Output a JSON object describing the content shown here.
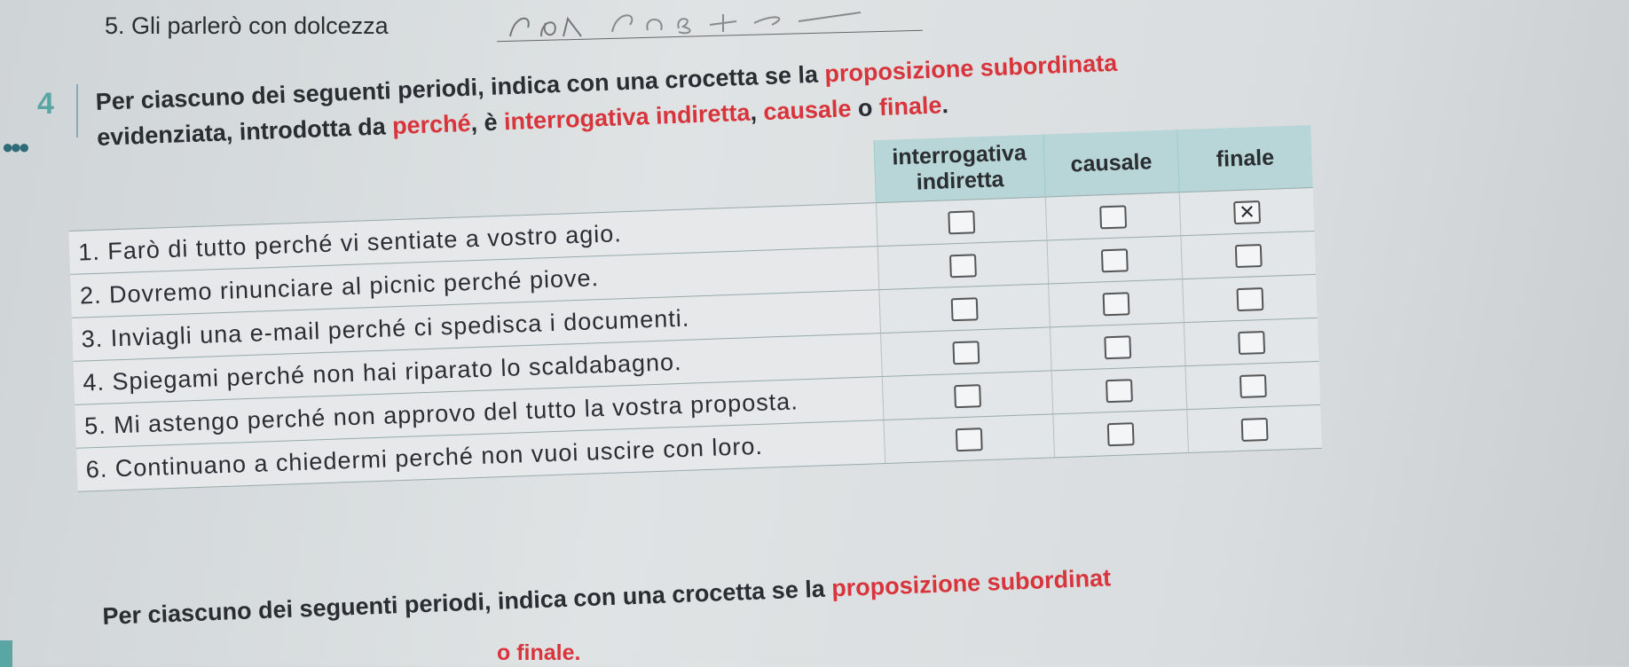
{
  "previous_item": "5. Gli parlerò con dolcezza",
  "exercise": {
    "number": "4",
    "instruction_parts": [
      "Per ciascuno dei seguenti periodi, indica con una crocetta se la ",
      "proposizione subordinata",
      " evidenziata, introdotta da ",
      "perché",
      ", è ",
      "interrogativa indiretta",
      ", ",
      "causale",
      " o ",
      "finale",
      "."
    ],
    "columns": [
      "interrogativa indiretta",
      "causale",
      "finale"
    ],
    "rows": [
      {
        "text": "1. Farò di tutto perché vi sentiate a vostro agio.",
        "checked": [
          false,
          false,
          true
        ]
      },
      {
        "text": "2. Dovremo rinunciare al picnic perché piove.",
        "checked": [
          false,
          false,
          false
        ]
      },
      {
        "text": "3. Inviagli una e-mail perché ci spedisca i documenti.",
        "checked": [
          false,
          false,
          false
        ]
      },
      {
        "text": "4. Spiegami perché non hai riparato lo scaldabagno.",
        "checked": [
          false,
          false,
          false
        ]
      },
      {
        "text": "5. Mi astengo perché non approvo del tutto la vostra proposta.",
        "checked": [
          false,
          false,
          false
        ]
      },
      {
        "text": "6. Continuano a chiedermi perché non vuoi uscire con loro.",
        "checked": [
          false,
          false,
          false
        ]
      }
    ],
    "check_mark": "✕"
  },
  "next_exercise": {
    "instruction_start": "Per ciascuno dei seguenti periodi, indica con una crocetta se la ",
    "instruction_red": "proposizione subordinat",
    "line2": "o finale."
  },
  "colors": {
    "accent_red": "#d8343c",
    "teal": "#5aa6a4",
    "header_bg": "#b8d6d7"
  }
}
